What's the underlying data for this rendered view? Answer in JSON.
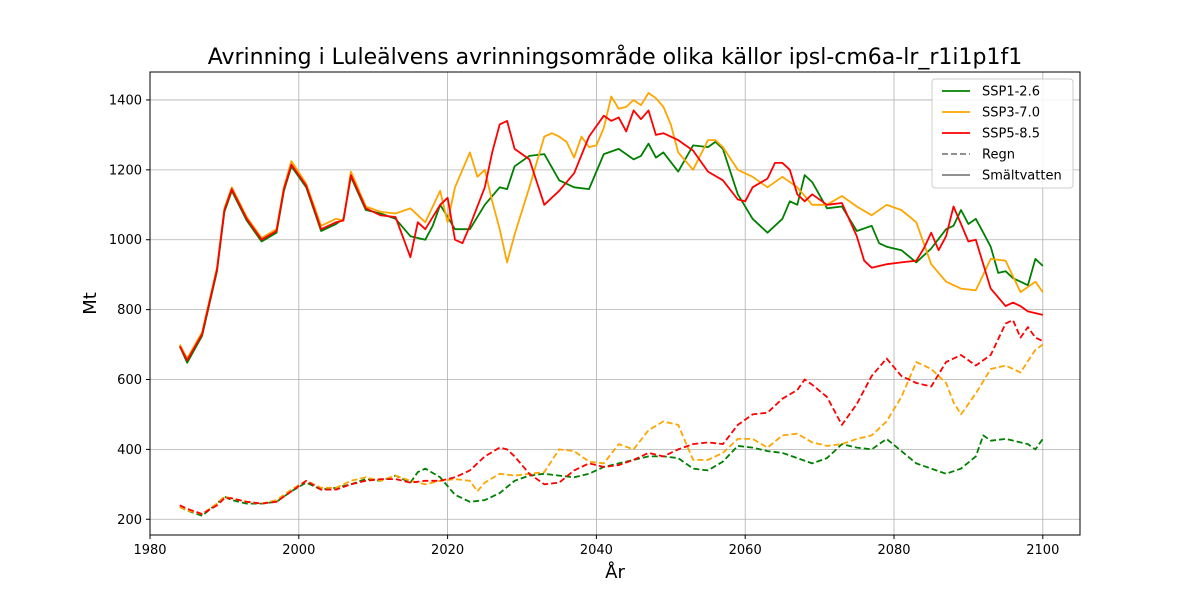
{
  "chart_data": {
    "type": "line",
    "title": "Avrinning i Luleälvens avrinningsområde olika källor ipsl-cm6a-lr_r1i1p1f1",
    "xlabel": "År",
    "ylabel": "Mt",
    "xlim": [
      1980,
      2105
    ],
    "ylim": [
      155,
      1480
    ],
    "xticks": [
      1980,
      2000,
      2020,
      2040,
      2060,
      2080,
      2100
    ],
    "yticks": [
      200,
      400,
      600,
      800,
      1000,
      1200,
      1400
    ],
    "grid": true,
    "legend_position": "top-right",
    "legend": [
      {
        "label": "SSP1-2.6",
        "color": "#008000",
        "style": "solid"
      },
      {
        "label": "SSP3-7.0",
        "color": "#ffa500",
        "style": "solid"
      },
      {
        "label": "SSP5-8.5",
        "color": "#ff0000",
        "style": "solid"
      },
      {
        "label": "Regn",
        "color": "#808080",
        "style": "dashed"
      },
      {
        "label": "Smältvatten",
        "color": "#808080",
        "style": "solid"
      }
    ],
    "series": [
      {
        "name": "SSP1-2.6",
        "kind": "Smältvatten",
        "color": "#008000",
        "style": "solid",
        "x": [
          1984,
          1985,
          1987,
          1989,
          1990,
          1991,
          1993,
          1995,
          1997,
          1998,
          1999,
          2001,
          2003,
          2005,
          2006,
          2007,
          2009,
          2011,
          2013,
          2015,
          2017,
          2018,
          2019,
          2021,
          2023,
          2025,
          2027,
          2028,
          2029,
          2031,
          2033,
          2035,
          2037,
          2039,
          2041,
          2043,
          2045,
          2046,
          2047,
          2048,
          2049,
          2051,
          2053,
          2055,
          2056,
          2057,
          2059,
          2061,
          2063,
          2065,
          2066,
          2067,
          2068,
          2069,
          2071,
          2073,
          2075,
          2077,
          2078,
          2079,
          2081,
          2083,
          2085,
          2087,
          2088,
          2089,
          2090,
          2091,
          2092,
          2093,
          2094,
          2095,
          2096,
          2097,
          2098,
          2099,
          2100
        ],
        "y": [
          695,
          648,
          725,
          910,
          1080,
          1140,
          1055,
          995,
          1020,
          1140,
          1210,
          1150,
          1025,
          1045,
          1060,
          1180,
          1085,
          1075,
          1060,
          1010,
          1000,
          1040,
          1100,
          1030,
          1030,
          1100,
          1150,
          1145,
          1210,
          1240,
          1245,
          1170,
          1150,
          1145,
          1245,
          1260,
          1230,
          1240,
          1275,
          1235,
          1250,
          1195,
          1270,
          1265,
          1280,
          1260,
          1130,
          1060,
          1020,
          1060,
          1110,
          1100,
          1185,
          1165,
          1090,
          1095,
          1025,
          1040,
          990,
          980,
          970,
          935,
          975,
          1030,
          1040,
          1085,
          1045,
          1060,
          1020,
          980,
          905,
          910,
          890,
          880,
          870,
          945,
          925
        ]
      },
      {
        "name": "SSP3-7.0",
        "kind": "Smältvatten",
        "color": "#ffa500",
        "style": "solid",
        "x": [
          1984,
          1985,
          1987,
          1989,
          1990,
          1991,
          1993,
          1995,
          1997,
          1998,
          1999,
          2001,
          2003,
          2005,
          2006,
          2007,
          2009,
          2011,
          2013,
          2015,
          2017,
          2019,
          2020,
          2021,
          2023,
          2024,
          2025,
          2026,
          2027,
          2028,
          2029,
          2031,
          2033,
          2034,
          2035,
          2036,
          2037,
          2038,
          2039,
          2040,
          2041,
          2042,
          2043,
          2044,
          2045,
          2046,
          2047,
          2048,
          2049,
          2050,
          2051,
          2053,
          2055,
          2056,
          2057,
          2059,
          2061,
          2063,
          2065,
          2067,
          2069,
          2071,
          2073,
          2075,
          2077,
          2079,
          2081,
          2083,
          2085,
          2087,
          2089,
          2091,
          2093,
          2095,
          2097,
          2099,
          2100
        ],
        "y": [
          700,
          660,
          735,
          920,
          1090,
          1150,
          1065,
          1005,
          1030,
          1150,
          1225,
          1160,
          1040,
          1060,
          1055,
          1195,
          1095,
          1080,
          1075,
          1090,
          1050,
          1140,
          1050,
          1150,
          1250,
          1180,
          1200,
          1110,
          1030,
          935,
          1015,
          1150,
          1295,
          1305,
          1295,
          1280,
          1235,
          1295,
          1265,
          1270,
          1320,
          1410,
          1375,
          1380,
          1400,
          1385,
          1420,
          1405,
          1380,
          1330,
          1250,
          1200,
          1285,
          1285,
          1265,
          1200,
          1180,
          1150,
          1180,
          1150,
          1100,
          1100,
          1125,
          1095,
          1070,
          1100,
          1085,
          1050,
          930,
          880,
          860,
          855,
          945,
          940,
          850,
          880,
          850
        ]
      },
      {
        "name": "SSP5-8.5",
        "kind": "Smältvatten",
        "color": "#ff0000",
        "style": "solid",
        "x": [
          1984,
          1985,
          1987,
          1989,
          1990,
          1991,
          1993,
          1995,
          1997,
          1998,
          1999,
          2001,
          2003,
          2005,
          2006,
          2007,
          2009,
          2011,
          2013,
          2015,
          2016,
          2017,
          2019,
          2020,
          2021,
          2022,
          2023,
          2025,
          2026,
          2027,
          2028,
          2029,
          2031,
          2033,
          2035,
          2037,
          2039,
          2041,
          2042,
          2043,
          2044,
          2045,
          2046,
          2047,
          2048,
          2049,
          2051,
          2053,
          2055,
          2057,
          2059,
          2060,
          2061,
          2063,
          2064,
          2065,
          2066,
          2067,
          2068,
          2069,
          2071,
          2073,
          2075,
          2076,
          2077,
          2079,
          2081,
          2083,
          2084,
          2085,
          2086,
          2087,
          2088,
          2089,
          2090,
          2091,
          2093,
          2095,
          2096,
          2097,
          2098,
          2099,
          2100
        ],
        "y": [
          695,
          655,
          730,
          915,
          1085,
          1145,
          1060,
          1000,
          1025,
          1145,
          1215,
          1155,
          1030,
          1050,
          1055,
          1185,
          1090,
          1070,
          1065,
          950,
          1050,
          1030,
          1100,
          1120,
          1000,
          990,
          1040,
          1150,
          1250,
          1330,
          1340,
          1260,
          1230,
          1100,
          1140,
          1190,
          1295,
          1355,
          1340,
          1350,
          1310,
          1370,
          1345,
          1370,
          1300,
          1305,
          1285,
          1255,
          1195,
          1170,
          1115,
          1110,
          1150,
          1175,
          1220,
          1220,
          1200,
          1130,
          1110,
          1130,
          1100,
          1105,
          1010,
          940,
          920,
          930,
          935,
          940,
          975,
          1020,
          970,
          1010,
          1095,
          1045,
          995,
          1000,
          860,
          810,
          820,
          810,
          795,
          790,
          785
        ]
      },
      {
        "name": "SSP1-2.6",
        "kind": "Regn",
        "color": "#008000",
        "style": "dashed",
        "x": [
          1984,
          1985,
          1987,
          1989,
          1990,
          1991,
          1993,
          1995,
          1997,
          1999,
          2001,
          2003,
          2005,
          2007,
          2009,
          2011,
          2013,
          2015,
          2016,
          2017,
          2019,
          2021,
          2023,
          2025,
          2027,
          2029,
          2031,
          2033,
          2035,
          2037,
          2039,
          2041,
          2043,
          2045,
          2047,
          2049,
          2051,
          2053,
          2055,
          2057,
          2059,
          2061,
          2063,
          2065,
          2067,
          2069,
          2071,
          2073,
          2075,
          2077,
          2079,
          2081,
          2083,
          2085,
          2087,
          2089,
          2091,
          2092,
          2093,
          2095,
          2097,
          2098,
          2099,
          2100
        ],
        "y": [
          235,
          225,
          210,
          245,
          265,
          255,
          245,
          245,
          250,
          280,
          305,
          285,
          290,
          300,
          315,
          310,
          325,
          305,
          335,
          345,
          320,
          270,
          250,
          255,
          275,
          310,
          325,
          330,
          325,
          320,
          330,
          350,
          360,
          370,
          380,
          380,
          375,
          345,
          340,
          365,
          410,
          405,
          395,
          390,
          375,
          360,
          375,
          415,
          405,
          400,
          430,
          395,
          360,
          345,
          330,
          345,
          380,
          440,
          425,
          430,
          420,
          415,
          400,
          430
        ]
      },
      {
        "name": "SSP3-7.0",
        "kind": "Regn",
        "color": "#ffa500",
        "style": "dashed",
        "x": [
          1984,
          1985,
          1987,
          1989,
          1990,
          1991,
          1993,
          1995,
          1997,
          1999,
          2001,
          2003,
          2005,
          2007,
          2009,
          2011,
          2013,
          2015,
          2017,
          2019,
          2021,
          2023,
          2024,
          2025,
          2027,
          2029,
          2031,
          2033,
          2035,
          2037,
          2039,
          2041,
          2043,
          2045,
          2047,
          2049,
          2051,
          2053,
          2055,
          2057,
          2059,
          2061,
          2063,
          2065,
          2067,
          2069,
          2071,
          2073,
          2075,
          2077,
          2079,
          2081,
          2083,
          2085,
          2087,
          2088,
          2089,
          2091,
          2093,
          2095,
          2097,
          2099,
          2100
        ],
        "y": [
          235,
          225,
          215,
          245,
          265,
          260,
          250,
          245,
          255,
          285,
          310,
          290,
          290,
          310,
          320,
          310,
          325,
          310,
          300,
          310,
          315,
          310,
          280,
          305,
          330,
          325,
          330,
          335,
          400,
          395,
          365,
          360,
          415,
          400,
          455,
          480,
          470,
          370,
          370,
          390,
          430,
          430,
          405,
          440,
          445,
          420,
          410,
          415,
          430,
          440,
          480,
          550,
          650,
          630,
          590,
          535,
          500,
          560,
          630,
          640,
          620,
          685,
          700
        ]
      },
      {
        "name": "SSP5-8.5",
        "kind": "Regn",
        "color": "#ff0000",
        "style": "dashed",
        "x": [
          1984,
          1985,
          1987,
          1989,
          1990,
          1991,
          1993,
          1995,
          1997,
          1999,
          2001,
          2003,
          2005,
          2007,
          2009,
          2011,
          2013,
          2015,
          2017,
          2019,
          2021,
          2023,
          2025,
          2027,
          2028,
          2029,
          2031,
          2033,
          2035,
          2037,
          2039,
          2041,
          2043,
          2045,
          2047,
          2049,
          2051,
          2053,
          2055,
          2057,
          2059,
          2061,
          2063,
          2065,
          2067,
          2068,
          2069,
          2071,
          2073,
          2075,
          2077,
          2079,
          2081,
          2083,
          2085,
          2087,
          2089,
          2091,
          2093,
          2095,
          2096,
          2097,
          2098,
          2099,
          2100
        ],
        "y": [
          240,
          230,
          215,
          240,
          260,
          260,
          250,
          245,
          250,
          280,
          310,
          285,
          285,
          300,
          310,
          315,
          315,
          305,
          310,
          310,
          320,
          340,
          380,
          405,
          400,
          380,
          330,
          300,
          305,
          340,
          360,
          350,
          355,
          370,
          390,
          380,
          400,
          415,
          420,
          415,
          470,
          500,
          505,
          545,
          570,
          600,
          585,
          550,
          470,
          530,
          610,
          660,
          610,
          590,
          580,
          650,
          670,
          640,
          670,
          760,
          770,
          720,
          750,
          720,
          710
        ]
      }
    ]
  }
}
